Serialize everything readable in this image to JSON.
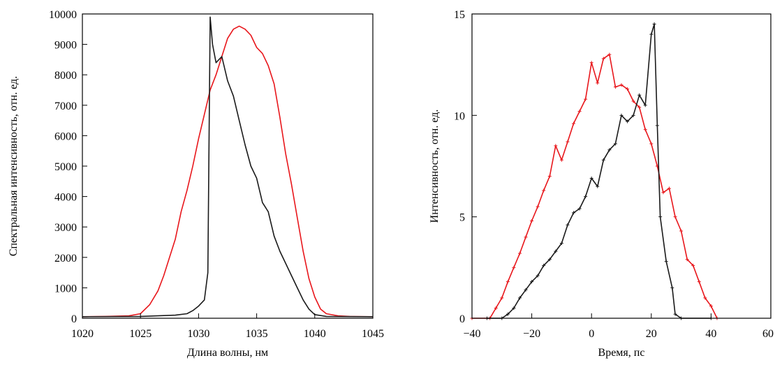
{
  "chart_data": [
    {
      "type": "line",
      "xlabel": "Длина волны, нм",
      "ylabel": "Спектральная интенсивность, отн. ед.",
      "xlim": [
        1020,
        1045
      ],
      "ylim": [
        0,
        10000
      ],
      "xticks": [
        "1020",
        "1025",
        "1030",
        "1035",
        "1040",
        "1045"
      ],
      "yticks": [
        "0",
        "1000",
        "2000",
        "3000",
        "4000",
        "5000",
        "6000",
        "7000",
        "8000",
        "9000",
        "10000"
      ],
      "grid": false,
      "series": [
        {
          "color": "#e8161b",
          "x": [
            1020,
            1022,
            1024,
            1025,
            1025.8,
            1026.5,
            1027,
            1027.5,
            1028,
            1028.5,
            1029,
            1029.5,
            1030,
            1030.5,
            1031,
            1031.5,
            1032,
            1032.5,
            1033,
            1033.5,
            1034,
            1034.5,
            1035,
            1035.5,
            1036,
            1036.5,
            1037,
            1037.5,
            1038,
            1038.5,
            1039,
            1039.5,
            1040,
            1040.5,
            1041,
            1042,
            1043,
            1045
          ],
          "y": [
            50,
            60,
            80,
            150,
            450,
            900,
            1400,
            2000,
            2600,
            3500,
            4200,
            5000,
            5900,
            6700,
            7500,
            8000,
            8600,
            9200,
            9500,
            9600,
            9500,
            9300,
            8900,
            8700,
            8300,
            7700,
            6600,
            5400,
            4400,
            3300,
            2200,
            1300,
            700,
            300,
            150,
            80,
            60,
            50
          ]
        },
        {
          "color": "#1a1a1a",
          "x": [
            1020,
            1025,
            1028,
            1029,
            1029.5,
            1030,
            1030.5,
            1030.8,
            1031,
            1031.2,
            1031.5,
            1032,
            1032.5,
            1033,
            1033.5,
            1034,
            1034.5,
            1035,
            1035.5,
            1036,
            1036.5,
            1037,
            1037.5,
            1038,
            1038.5,
            1039,
            1039.5,
            1040,
            1041,
            1045
          ],
          "y": [
            50,
            60,
            100,
            150,
            250,
            400,
            600,
            1500,
            9900,
            9000,
            8400,
            8600,
            7800,
            7300,
            6500,
            5700,
            5000,
            4600,
            3800,
            3500,
            2700,
            2200,
            1800,
            1400,
            1000,
            600,
            300,
            120,
            60,
            50
          ]
        }
      ]
    },
    {
      "type": "line",
      "xlabel": "Время, пс",
      "ylabel": "Интенсивность, отн. ед.",
      "xlim": [
        -40,
        60
      ],
      "ylim": [
        0,
        15
      ],
      "xticks": [
        "−40",
        "−20",
        "0",
        "20",
        "40",
        "60"
      ],
      "yticks": [
        "0",
        "5",
        "10",
        "15"
      ],
      "grid": false,
      "series": [
        {
          "color": "#e8161b",
          "x": [
            -40,
            -34,
            -32,
            -30,
            -28,
            -26,
            -24,
            -22,
            -20,
            -18,
            -16,
            -14,
            -12,
            -10,
            -8,
            -6,
            -4,
            -2,
            0,
            2,
            4,
            6,
            8,
            10,
            12,
            14,
            16,
            18,
            20,
            22,
            24,
            26,
            28,
            30,
            32,
            34,
            36,
            38,
            40,
            42
          ],
          "y": [
            0,
            0,
            0.5,
            1.0,
            1.8,
            2.5,
            3.2,
            4.0,
            4.8,
            5.5,
            6.3,
            7.0,
            8.5,
            7.8,
            8.7,
            9.6,
            10.2,
            10.8,
            12.6,
            11.6,
            12.8,
            13.0,
            11.4,
            11.5,
            11.3,
            10.7,
            10.4,
            9.3,
            8.6,
            7.5,
            6.2,
            6.4,
            5.0,
            4.3,
            2.9,
            2.6,
            1.8,
            1.0,
            0.6,
            0
          ]
        },
        {
          "color": "#1a1a1a",
          "x": [
            -35,
            -30,
            -28,
            -26,
            -24,
            -22,
            -20,
            -18,
            -16,
            -14,
            -12,
            -10,
            -8,
            -6,
            -4,
            -2,
            0,
            2,
            4,
            6,
            8,
            10,
            12,
            14,
            16,
            18,
            20,
            21,
            22,
            23,
            25,
            27,
            28,
            30,
            40
          ],
          "y": [
            0,
            0,
            0.2,
            0.5,
            1.0,
            1.4,
            1.8,
            2.1,
            2.6,
            2.9,
            3.3,
            3.7,
            4.6,
            5.2,
            5.4,
            6.0,
            6.9,
            6.5,
            7.8,
            8.3,
            8.6,
            10.0,
            9.7,
            10.0,
            11.0,
            10.5,
            14.0,
            14.5,
            9.5,
            5.0,
            2.8,
            1.5,
            0.2,
            0,
            0
          ]
        }
      ]
    }
  ]
}
